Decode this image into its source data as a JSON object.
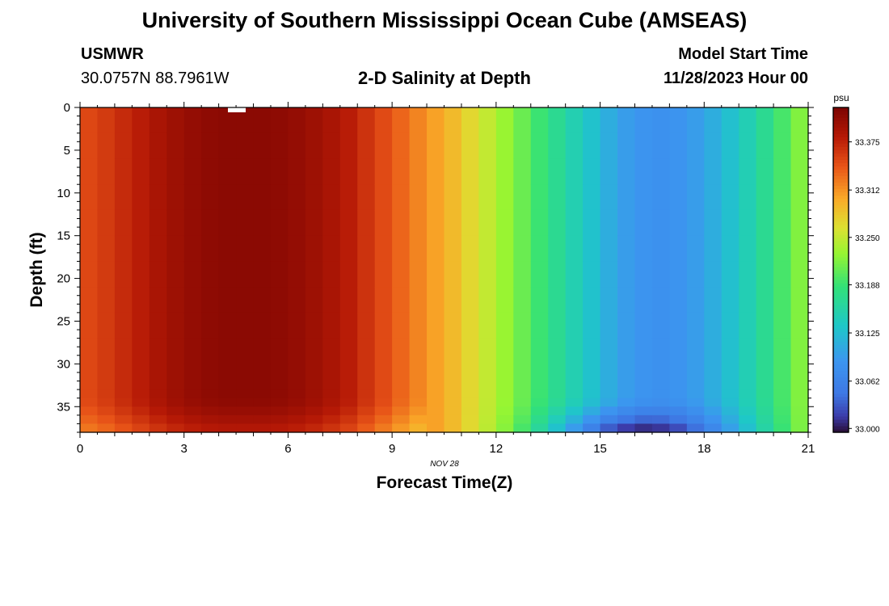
{
  "header": {
    "title": "University of Southern Mississippi Ocean Cube (AMSEAS)",
    "station": "USMWR",
    "coords": "30.0757N  88.7961W",
    "subtitle": "2-D Salinity at Depth",
    "model_start_label": "Model Start Time",
    "model_start_value": "11/28/2023 Hour 00"
  },
  "footer": {
    "title": "University of Southern Mississippi Ocean Cube (AMSEAS)"
  },
  "chart_data": {
    "type": "heatmap",
    "title": "2-D Salinity at Depth",
    "xlabel": "Forecast Time(Z)",
    "ylabel": "Depth (ft)",
    "date_label": "NOV 28",
    "x_ticks": [
      0,
      3,
      6,
      9,
      12,
      15,
      18,
      21
    ],
    "y_ticks": [
      0,
      5,
      10,
      15,
      20,
      25,
      30,
      35
    ],
    "xlim": [
      0,
      21
    ],
    "ylim": [
      38,
      0
    ],
    "x_step": 0.5,
    "colorbar": {
      "unit": "psu",
      "range": [
        32.995,
        33.42
      ],
      "ticks": [
        "33.000",
        "33.062",
        "33.125",
        "33.188",
        "33.250",
        "33.312",
        "33.375"
      ]
    },
    "surface_salinity": [
      33.352,
      33.36,
      33.37,
      33.38,
      33.39,
      33.398,
      33.404,
      33.408,
      33.41,
      33.41,
      33.41,
      33.408,
      33.404,
      33.398,
      33.39,
      33.38,
      33.365,
      33.35,
      33.335,
      33.32,
      33.305,
      33.29,
      33.27,
      33.25,
      33.23,
      33.21,
      33.19,
      33.17,
      33.15,
      33.13,
      33.11,
      33.095,
      33.085,
      33.082,
      33.085,
      33.095,
      33.11,
      33.128,
      33.148,
      33.17,
      33.195,
      33.22,
      33.25
    ],
    "bottom_layer_depth_ft": 34,
    "bottom_min_salinity": 32.995,
    "bottom_min_time": 16
  }
}
